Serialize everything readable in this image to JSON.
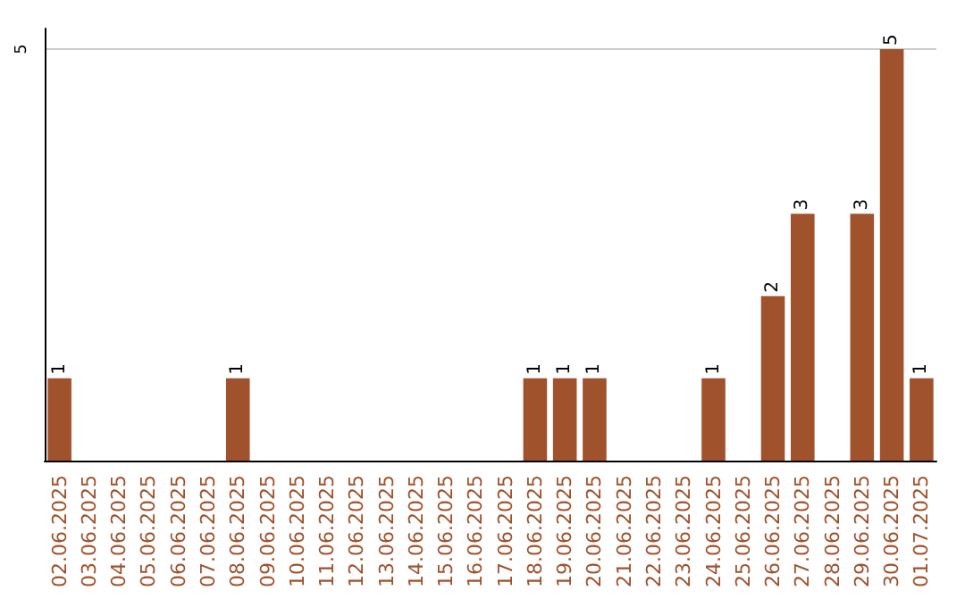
{
  "chart_data": {
    "type": "bar",
    "categories": [
      "02.06.2025",
      "03.06.2025",
      "04.06.2025",
      "05.06.2025",
      "06.06.2025",
      "07.06.2025",
      "08.06.2025",
      "09.06.2025",
      "10.06.2025",
      "11.06.2025",
      "12.06.2025",
      "13.06.2025",
      "14.06.2025",
      "15.06.2025",
      "16.06.2025",
      "17.06.2025",
      "18.06.2025",
      "19.06.2025",
      "20.06.2025",
      "21.06.2025",
      "22.06.2025",
      "23.06.2025",
      "24.06.2025",
      "25.06.2025",
      "26.06.2025",
      "27.06.2025",
      "28.06.2025",
      "29.06.2025",
      "30.06.2025",
      "01.07.2025"
    ],
    "values": [
      1,
      0,
      0,
      0,
      0,
      0,
      1,
      0,
      0,
      0,
      0,
      0,
      0,
      0,
      0,
      0,
      1,
      1,
      1,
      0,
      0,
      0,
      1,
      0,
      2,
      3,
      0,
      3,
      5,
      1
    ],
    "value_labels": [
      "1",
      null,
      null,
      null,
      null,
      null,
      "1",
      null,
      null,
      null,
      null,
      null,
      null,
      null,
      null,
      null,
      "1",
      "1",
      "1",
      null,
      null,
      null,
      "1",
      null,
      "2",
      "3",
      null,
      "3",
      "5",
      "1"
    ],
    "color": "#a0522d",
    "ylim": [
      0,
      5.25
    ],
    "yticks": [
      5
    ],
    "grid": "y"
  }
}
